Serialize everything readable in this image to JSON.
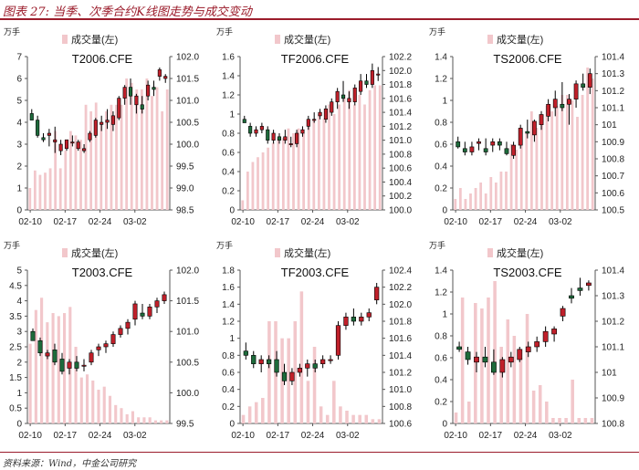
{
  "figure": {
    "title": "图表 27: 当季、次季合约K线图走势与成交变动",
    "source": "资料来源：Wind，中金公司研究"
  },
  "colors": {
    "up": "#c0202a",
    "down": "#1d6b3b",
    "volume": "#f2c7cb",
    "rule": "#9b1c2b"
  },
  "chart_data": [
    {
      "type": "candlestick+bar",
      "title": "T2006.CFE",
      "unit_left": "万手",
      "legend": "成交量(左)",
      "y_left": {
        "min": 0,
        "max": 7,
        "ticks": [
          "0",
          "1",
          "2",
          "3",
          "4",
          "5",
          "6",
          "7"
        ]
      },
      "y_right": {
        "min": 98.5,
        "max": 102.0,
        "ticks": [
          "98.5",
          "99.0",
          "99.5",
          "100.0",
          "100.5",
          "101.0",
          "101.5",
          "102.0"
        ]
      },
      "x_ticks": [
        "02-10",
        "02-17",
        "02-24",
        "03-02"
      ],
      "volume": [
        1.0,
        1.8,
        1.6,
        1.7,
        1.9,
        3.6,
        1.9,
        2.7,
        3.6,
        3.4,
        3.2,
        4.8,
        4.5,
        4.9,
        4.0,
        4.5,
        4.8,
        4.8,
        4.8,
        6.0,
        5.8,
        5.5,
        5.5,
        6.0,
        5.2,
        5.6,
        4.5,
        5.5
      ],
      "ohlc": [
        [
          100.7,
          100.8,
          100.55,
          100.55
        ],
        [
          100.55,
          100.65,
          100.15,
          100.2
        ],
        [
          100.15,
          100.25,
          100.05,
          100.1
        ],
        [
          100.2,
          100.35,
          99.95,
          100.25
        ],
        [
          100.05,
          100.4,
          99.8,
          100.1
        ],
        [
          99.85,
          100.1,
          99.75,
          100.0
        ],
        [
          99.9,
          100.1,
          99.85,
          100.1
        ],
        [
          100.05,
          100.2,
          99.95,
          100.05
        ],
        [
          99.9,
          100.1,
          99.85,
          100.05
        ],
        [
          99.85,
          100.0,
          99.8,
          99.9
        ],
        [
          100.1,
          100.3,
          100.05,
          100.25
        ],
        [
          100.2,
          100.6,
          100.15,
          100.55
        ],
        [
          100.45,
          100.65,
          100.3,
          100.5
        ],
        [
          100.5,
          100.8,
          100.35,
          100.55
        ],
        [
          100.45,
          100.75,
          100.3,
          100.65
        ],
        [
          100.6,
          101.1,
          100.55,
          101.05
        ],
        [
          101.05,
          101.35,
          100.9,
          101.3
        ],
        [
          101.3,
          101.5,
          100.9,
          101.1
        ],
        [
          100.9,
          101.15,
          100.7,
          101.1
        ],
        [
          100.9,
          101.1,
          100.7,
          100.8
        ],
        [
          101.1,
          101.45,
          101.0,
          101.35
        ],
        [
          101.3,
          101.45,
          101.1,
          101.25
        ],
        [
          101.55,
          101.75,
          101.45,
          101.7
        ],
        [
          101.5,
          101.6,
          101.4,
          101.55
        ]
      ]
    },
    {
      "type": "candlestick+bar",
      "title": "TF2006.CFE",
      "unit_left": "万手",
      "legend": "成交量(左)",
      "y_left": {
        "min": 0,
        "max": 1.6,
        "ticks": [
          "0",
          "0.2",
          "0.4",
          "0.6",
          "0.8",
          "1",
          "1.2",
          "1.4",
          "1.6"
        ]
      },
      "y_right": {
        "min": 100.0,
        "max": 102.2,
        "ticks": [
          "100.0",
          "100.2",
          "100.4",
          "100.6",
          "100.8",
          "101.0",
          "101.2",
          "101.4",
          "101.6",
          "101.8",
          "102.0",
          "102.2"
        ]
      },
      "x_ticks": [
        "02-10",
        "02-17",
        "02-24",
        "03-02"
      ],
      "volume": [
        0.1,
        0.4,
        0.5,
        0.55,
        0.6,
        0.65,
        0.7,
        0.75,
        0.75,
        0.85,
        0.8,
        0.85,
        0.8,
        0.95,
        0.95,
        1.0,
        0.95,
        1.1,
        1.0,
        1.1,
        1.2,
        1.25,
        1.1,
        1.2,
        1.1,
        1.25,
        1.3,
        1.3
      ],
      "ohlc": [
        [
          101.3,
          101.35,
          101.25,
          101.25
        ],
        [
          101.2,
          101.25,
          101.05,
          101.1
        ],
        [
          101.1,
          101.2,
          101.05,
          101.15
        ],
        [
          101.15,
          101.25,
          101.1,
          101.2
        ],
        [
          101.15,
          101.2,
          100.95,
          101.0
        ],
        [
          101.0,
          101.15,
          100.95,
          101.1
        ],
        [
          101.05,
          101.1,
          100.95,
          101.0
        ],
        [
          101.0,
          101.15,
          100.95,
          101.05
        ],
        [
          100.95,
          101.05,
          100.9,
          100.95
        ],
        [
          100.95,
          101.15,
          100.9,
          101.1
        ],
        [
          101.1,
          101.2,
          101.05,
          101.15
        ],
        [
          101.2,
          101.35,
          101.15,
          101.3
        ],
        [
          101.3,
          101.4,
          101.25,
          101.3
        ],
        [
          101.35,
          101.45,
          101.3,
          101.4
        ],
        [
          101.3,
          101.5,
          101.25,
          101.45
        ],
        [
          101.4,
          101.6,
          101.35,
          101.55
        ],
        [
          101.55,
          101.75,
          101.45,
          101.7
        ],
        [
          101.65,
          101.85,
          101.55,
          101.6
        ],
        [
          101.55,
          101.7,
          101.45,
          101.6
        ],
        [
          101.55,
          101.8,
          101.5,
          101.75
        ],
        [
          101.7,
          101.95,
          101.65,
          101.85
        ],
        [
          101.85,
          101.95,
          101.75,
          101.8
        ],
        [
          101.8,
          102.1,
          101.75,
          102.0
        ],
        [
          101.95,
          102.05,
          101.85,
          101.95
        ]
      ]
    },
    {
      "type": "candlestick+bar",
      "title": "TS2006.CFE",
      "unit_left": "万手",
      "legend": "成交量(左)",
      "y_left": {
        "min": 0,
        "max": 1.4,
        "ticks": [
          "0",
          "0.2",
          "0.4",
          "0.6",
          "0.8",
          "1",
          "1.2",
          "1.4"
        ]
      },
      "y_right": {
        "min": 100.5,
        "max": 101.4,
        "ticks": [
          "100.5",
          "100.6",
          "100.7",
          "100.8",
          "100.9",
          "101",
          "101.1",
          "101.2",
          "101.3",
          "101.4"
        ]
      },
      "x_ticks": [
        "02-10",
        "02-17",
        "02-24",
        "03-02"
      ],
      "volume": [
        0.1,
        0.2,
        0.1,
        0.15,
        0.2,
        0.25,
        0.15,
        0.3,
        0.25,
        0.35,
        0.35,
        0.6,
        0.55,
        0.65,
        0.7,
        0.9,
        0.75,
        0.85,
        0.95,
        0.9,
        0.95,
        1.05,
        1.05,
        1.0,
        0.85,
        1.05,
        1.3,
        1.2
      ],
      "ohlc": [
        [
          100.9,
          100.93,
          100.86,
          100.87
        ],
        [
          100.86,
          100.9,
          100.82,
          100.84
        ],
        [
          100.84,
          100.9,
          100.82,
          100.87
        ],
        [
          100.89,
          100.92,
          100.85,
          100.9
        ],
        [
          100.86,
          100.92,
          100.82,
          100.84
        ],
        [
          100.88,
          100.92,
          100.84,
          100.9
        ],
        [
          100.9,
          100.92,
          100.85,
          100.88
        ],
        [
          100.86,
          100.9,
          100.82,
          100.83
        ],
        [
          100.82,
          100.9,
          100.8,
          100.88
        ],
        [
          100.88,
          101.0,
          100.86,
          100.98
        ],
        [
          100.96,
          101.03,
          100.92,
          100.95
        ],
        [
          100.94,
          101.03,
          100.9,
          101.02
        ],
        [
          101.0,
          101.08,
          100.97,
          101.06
        ],
        [
          101.05,
          101.15,
          101.02,
          101.12
        ],
        [
          101.1,
          101.2,
          101.05,
          101.15
        ],
        [
          101.12,
          101.25,
          101.08,
          101.1
        ],
        [
          101.12,
          101.18,
          101.0,
          101.15
        ],
        [
          101.15,
          101.26,
          101.1,
          101.24
        ],
        [
          101.24,
          101.3,
          101.2,
          101.22
        ],
        [
          101.22,
          101.33,
          101.18,
          101.3
        ]
      ]
    },
    {
      "type": "candlestick+bar",
      "title": "T2003.CFE",
      "unit_left": "万手",
      "legend": "成交量(左)",
      "y_left": {
        "min": 0,
        "max": 5,
        "ticks": [
          "0",
          "0.5",
          "1",
          "1.5",
          "2",
          "2.5",
          "3",
          "3.5",
          "4",
          "4.5",
          "5"
        ]
      },
      "y_right": {
        "min": 99.5,
        "max": 102.0,
        "ticks": [
          "99.5",
          "100.0",
          "100.5",
          "101.0",
          "101.5",
          "102.0"
        ]
      },
      "x_ticks": [
        "02-10",
        "02-17",
        "02-24",
        "03-02"
      ],
      "volume": [
        2.6,
        3.7,
        4.1,
        3.3,
        3.6,
        3.5,
        3.6,
        3.8,
        2.5,
        1.5,
        1.6,
        1.4,
        1.1,
        1.2,
        0.9,
        0.6,
        0.5,
        0.3,
        0.4,
        0.2,
        0.2,
        0.2,
        0.1,
        0.1,
        0.1
      ],
      "ohlc": [
        [
          101.0,
          101.05,
          100.85,
          100.85
        ],
        [
          100.85,
          100.9,
          100.6,
          100.65
        ],
        [
          100.6,
          100.7,
          100.55,
          100.65
        ],
        [
          100.7,
          100.8,
          100.45,
          100.5
        ],
        [
          100.55,
          100.65,
          100.3,
          100.35
        ],
        [
          100.4,
          100.55,
          100.3,
          100.5
        ],
        [
          100.5,
          100.6,
          100.35,
          100.4
        ],
        [
          100.45,
          100.55,
          100.35,
          100.45
        ],
        [
          100.5,
          100.7,
          100.45,
          100.65
        ],
        [
          100.7,
          100.8,
          100.6,
          100.75
        ],
        [
          100.75,
          100.85,
          100.65,
          100.8
        ],
        [
          100.8,
          101.0,
          100.75,
          100.95
        ],
        [
          100.95,
          101.1,
          100.9,
          101.05
        ],
        [
          101.05,
          101.2,
          100.95,
          101.15
        ],
        [
          101.2,
          101.5,
          101.1,
          101.45
        ],
        [
          101.3,
          101.45,
          101.2,
          101.25
        ],
        [
          101.25,
          101.45,
          101.2,
          101.4
        ],
        [
          101.4,
          101.55,
          101.3,
          101.5
        ],
        [
          101.5,
          101.65,
          101.45,
          101.6
        ]
      ]
    },
    {
      "type": "candlestick+bar",
      "title": "TF2003.CFE",
      "unit_left": "万手",
      "legend": "成交量(左)",
      "y_left": {
        "min": 0,
        "max": 1.8,
        "ticks": [
          "0",
          "0.2",
          "0.4",
          "0.6",
          "0.8",
          "1",
          "1.2",
          "1.4",
          "1.6",
          "1.8"
        ]
      },
      "y_right": {
        "min": 100.6,
        "max": 102.4,
        "ticks": [
          "100.6",
          "100.8",
          "101.0",
          "101.2",
          "101.4",
          "101.6",
          "101.8",
          "102.0",
          "102.2",
          "102.4"
        ]
      },
      "x_ticks": [
        "02-10",
        "02-17",
        "02-24",
        "03-02"
      ],
      "volume": [
        0.1,
        0.2,
        0.25,
        0.3,
        1.2,
        1.2,
        1.0,
        1.0,
        1.2,
        1.55,
        0.5,
        0.9,
        0.2,
        0.1,
        0.5,
        0.2,
        0.15,
        0.1,
        0.1,
        0.1,
        0.05,
        0.05
      ],
      "ohlc": [
        [
          101.45,
          101.55,
          101.35,
          101.4
        ],
        [
          101.4,
          101.45,
          101.25,
          101.3
        ],
        [
          101.3,
          101.4,
          101.2,
          101.35
        ],
        [
          101.35,
          101.4,
          101.25,
          101.3
        ],
        [
          101.35,
          101.45,
          101.15,
          101.2
        ],
        [
          101.2,
          101.3,
          101.05,
          101.1
        ],
        [
          101.1,
          101.25,
          101.05,
          101.2
        ],
        [
          101.2,
          101.3,
          101.15,
          101.25
        ],
        [
          101.25,
          101.35,
          101.15,
          101.3
        ],
        [
          101.3,
          101.35,
          101.2,
          101.25
        ],
        [
          101.3,
          101.4,
          101.25,
          101.35
        ],
        [
          101.35,
          101.4,
          101.3,
          101.35
        ],
        [
          101.4,
          101.8,
          101.35,
          101.75
        ],
        [
          101.75,
          101.9,
          101.7,
          101.85
        ],
        [
          101.85,
          101.95,
          101.75,
          101.8
        ],
        [
          101.8,
          101.9,
          101.75,
          101.85
        ],
        [
          101.85,
          101.95,
          101.8,
          101.9
        ],
        [
          102.05,
          102.25,
          102.0,
          102.2
        ]
      ]
    },
    {
      "type": "candlestick+bar",
      "title": "TS2003.CFE",
      "unit_left": "万手",
      "legend": "成交量(左)",
      "y_left": {
        "min": 0,
        "max": 1.4,
        "ticks": [
          "0",
          "0.2",
          "0.4",
          "0.6",
          "0.8",
          "1",
          "1.2",
          "1.4"
        ]
      },
      "y_right": {
        "min": 100.8,
        "max": 101.4,
        "ticks": [
          "100.8",
          "100.9",
          "101",
          "101.1",
          "101.2",
          "101.3",
          "101.4"
        ]
      },
      "x_ticks": [
        "02-10",
        "02-17",
        "02-24",
        "03-02"
      ],
      "volume": [
        0.1,
        1.15,
        0.2,
        1.1,
        1.05,
        1.15,
        1.3,
        0.7,
        0.95,
        0.8,
        0.6,
        1.0,
        0.3,
        0.35,
        0.2,
        0.05,
        0.05,
        0.05,
        0.4,
        0.05,
        0.05,
        0.05
      ],
      "ohlc": [
        [
          101.1,
          101.12,
          101.08,
          101.09
        ],
        [
          101.08,
          101.1,
          101.03,
          101.05
        ],
        [
          101.04,
          101.08,
          101.0,
          101.06
        ],
        [
          101.06,
          101.1,
          101.02,
          101.04
        ],
        [
          101.04,
          101.09,
          100.99,
          101.0
        ],
        [
          101.0,
          101.06,
          100.98,
          101.05
        ],
        [
          101.04,
          101.08,
          101.02,
          101.06
        ],
        [
          101.05,
          101.1,
          101.04,
          101.09
        ],
        [
          101.08,
          101.12,
          101.06,
          101.1
        ],
        [
          101.1,
          101.14,
          101.08,
          101.12
        ],
        [
          101.12,
          101.18,
          101.1,
          101.16
        ],
        [
          101.15,
          101.18,
          101.12,
          101.17
        ],
        [
          101.22,
          101.26,
          101.2,
          101.25
        ],
        [
          101.3,
          101.33,
          101.27,
          101.29
        ],
        [
          101.33,
          101.37,
          101.3,
          101.32
        ],
        [
          101.34,
          101.36,
          101.32,
          101.35
        ]
      ]
    }
  ]
}
